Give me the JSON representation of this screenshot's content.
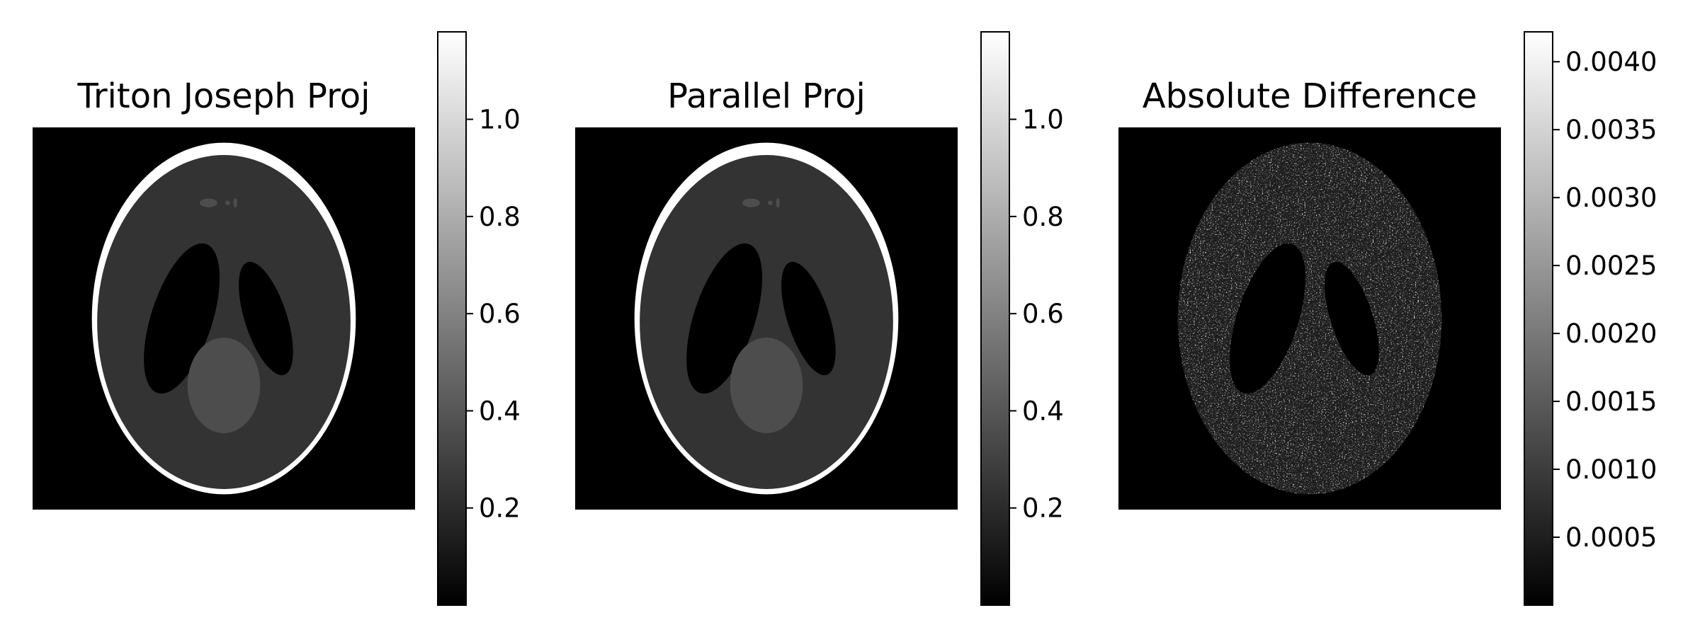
{
  "figure": {
    "background": "#ffffff"
  },
  "chart_data": [
    {
      "type": "heatmap",
      "colormap": "gray",
      "title": "Triton Joseph Proj",
      "image": "Shepp-Logan phantom reconstruction",
      "axis": "off",
      "colorbar": {
        "range": [
          0.0,
          1.18
        ],
        "ticks": [
          0.2,
          0.4,
          0.6,
          0.8,
          1.0
        ],
        "tick_labels": [
          "0.2",
          "0.4",
          "0.6",
          "0.8",
          "1.0"
        ]
      },
      "intensities": {
        "background": 0.0,
        "skull": 1.0,
        "brain": 0.2,
        "ventricles": 0.0,
        "center_blob": 0.3
      }
    },
    {
      "type": "heatmap",
      "colormap": "gray",
      "title": "Parallel Proj",
      "image": "Shepp-Logan phantom reconstruction",
      "axis": "off",
      "colorbar": {
        "range": [
          0.0,
          1.18
        ],
        "ticks": [
          0.2,
          0.4,
          0.6,
          0.8,
          1.0
        ],
        "tick_labels": [
          "0.2",
          "0.4",
          "0.6",
          "0.8",
          "1.0"
        ]
      },
      "intensities": {
        "background": 0.0,
        "skull": 1.0,
        "brain": 0.2,
        "ventricles": 0.0,
        "center_blob": 0.3
      }
    },
    {
      "type": "heatmap",
      "colormap": "gray",
      "title": "Absolute Difference",
      "image": "absolute difference map (noise inside phantom)",
      "axis": "off",
      "colorbar": {
        "range": [
          0.0,
          0.00422
        ],
        "ticks": [
          0.0005,
          0.001,
          0.0015,
          0.002,
          0.0025,
          0.003,
          0.0035,
          0.004
        ],
        "tick_labels": [
          "0.0005",
          "0.0010",
          "0.0015",
          "0.0020",
          "0.0025",
          "0.0030",
          "0.0035",
          "0.0040"
        ]
      }
    }
  ]
}
